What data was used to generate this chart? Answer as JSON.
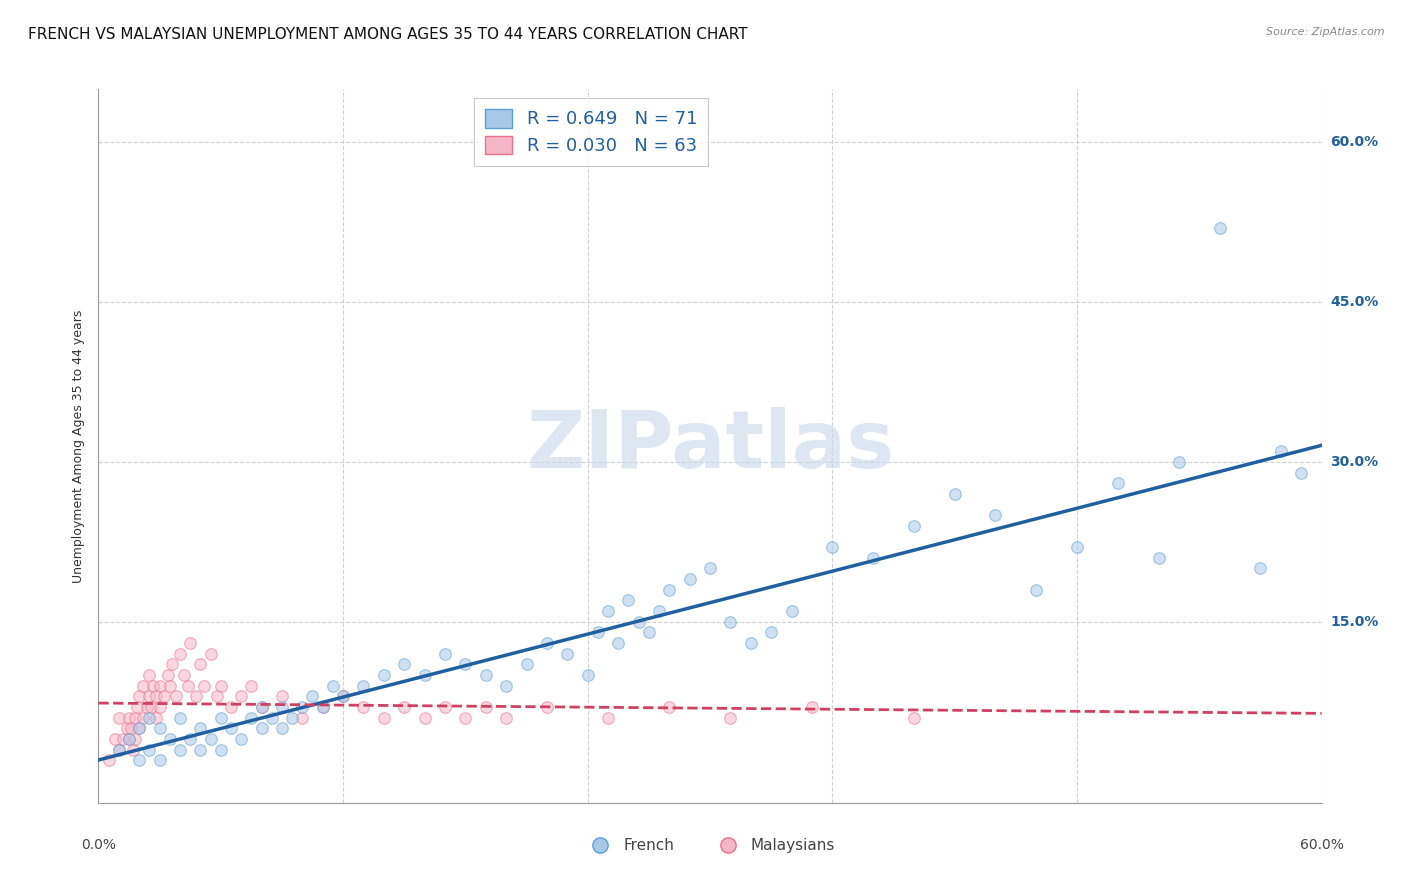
{
  "title": "FRENCH VS MALAYSIAN UNEMPLOYMENT AMONG AGES 35 TO 44 YEARS CORRELATION CHART",
  "source": "Source: ZipAtlas.com",
  "ylabel": "Unemployment Among Ages 35 to 44 years",
  "xlim": [
    0.0,
    0.6
  ],
  "ylim": [
    -0.02,
    0.65
  ],
  "ytick_labels": [
    "15.0%",
    "30.0%",
    "45.0%",
    "60.0%"
  ],
  "ytick_values": [
    0.15,
    0.3,
    0.45,
    0.6
  ],
  "xtick_values": [
    0.0,
    0.12,
    0.24,
    0.36,
    0.48,
    0.6
  ],
  "xtick_labels": [
    "",
    "",
    "",
    "",
    "",
    ""
  ],
  "watermark": "ZIPatlas",
  "french_color": "#a8c8e8",
  "french_edge_color": "#5a9fd4",
  "malaysian_color": "#f7b6c8",
  "malaysian_edge_color": "#e8708a",
  "french_R": 0.649,
  "french_N": 71,
  "malaysian_R": 0.03,
  "malaysian_N": 63,
  "trend_blue_color": "#2060a0",
  "trend_pink_color": "#d04060",
  "french_x": [
    0.01,
    0.015,
    0.02,
    0.02,
    0.025,
    0.025,
    0.03,
    0.03,
    0.035,
    0.04,
    0.04,
    0.045,
    0.05,
    0.05,
    0.055,
    0.06,
    0.06,
    0.065,
    0.07,
    0.075,
    0.08,
    0.08,
    0.085,
    0.09,
    0.09,
    0.095,
    0.1,
    0.105,
    0.11,
    0.115,
    0.12,
    0.13,
    0.14,
    0.15,
    0.16,
    0.17,
    0.18,
    0.19,
    0.2,
    0.21,
    0.22,
    0.23,
    0.24,
    0.245,
    0.25,
    0.255,
    0.26,
    0.265,
    0.27,
    0.275,
    0.28,
    0.29,
    0.3,
    0.31,
    0.32,
    0.33,
    0.34,
    0.36,
    0.38,
    0.4,
    0.42,
    0.44,
    0.46,
    0.48,
    0.5,
    0.52,
    0.53,
    0.55,
    0.57,
    0.58,
    0.59
  ],
  "french_y": [
    0.03,
    0.04,
    0.02,
    0.05,
    0.03,
    0.06,
    0.02,
    0.05,
    0.04,
    0.03,
    0.06,
    0.04,
    0.03,
    0.05,
    0.04,
    0.03,
    0.06,
    0.05,
    0.04,
    0.06,
    0.05,
    0.07,
    0.06,
    0.05,
    0.07,
    0.06,
    0.07,
    0.08,
    0.07,
    0.09,
    0.08,
    0.09,
    0.1,
    0.11,
    0.1,
    0.12,
    0.11,
    0.1,
    0.09,
    0.11,
    0.13,
    0.12,
    0.1,
    0.14,
    0.16,
    0.13,
    0.17,
    0.15,
    0.14,
    0.16,
    0.18,
    0.19,
    0.2,
    0.15,
    0.13,
    0.14,
    0.16,
    0.22,
    0.21,
    0.24,
    0.27,
    0.25,
    0.18,
    0.22,
    0.28,
    0.21,
    0.3,
    0.52,
    0.2,
    0.31,
    0.29
  ],
  "malaysian_x": [
    0.005,
    0.008,
    0.01,
    0.01,
    0.012,
    0.014,
    0.015,
    0.015,
    0.016,
    0.017,
    0.018,
    0.018,
    0.019,
    0.02,
    0.02,
    0.022,
    0.022,
    0.024,
    0.025,
    0.025,
    0.026,
    0.027,
    0.028,
    0.028,
    0.03,
    0.03,
    0.032,
    0.034,
    0.035,
    0.036,
    0.038,
    0.04,
    0.042,
    0.044,
    0.045,
    0.048,
    0.05,
    0.052,
    0.055,
    0.058,
    0.06,
    0.065,
    0.07,
    0.075,
    0.08,
    0.09,
    0.1,
    0.11,
    0.12,
    0.13,
    0.14,
    0.15,
    0.16,
    0.17,
    0.18,
    0.19,
    0.2,
    0.22,
    0.25,
    0.28,
    0.31,
    0.35,
    0.4
  ],
  "malaysian_y": [
    0.02,
    0.04,
    0.03,
    0.06,
    0.04,
    0.05,
    0.06,
    0.04,
    0.05,
    0.03,
    0.06,
    0.04,
    0.07,
    0.05,
    0.08,
    0.06,
    0.09,
    0.07,
    0.08,
    0.1,
    0.07,
    0.09,
    0.06,
    0.08,
    0.07,
    0.09,
    0.08,
    0.1,
    0.09,
    0.11,
    0.08,
    0.12,
    0.1,
    0.09,
    0.13,
    0.08,
    0.11,
    0.09,
    0.12,
    0.08,
    0.09,
    0.07,
    0.08,
    0.09,
    0.07,
    0.08,
    0.06,
    0.07,
    0.08,
    0.07,
    0.06,
    0.07,
    0.06,
    0.07,
    0.06,
    0.07,
    0.06,
    0.07,
    0.06,
    0.07,
    0.06,
    0.07,
    0.06
  ],
  "background_color": "#ffffff",
  "grid_color": "#cccccc",
  "title_fontsize": 11,
  "axis_label_fontsize": 9,
  "tick_fontsize": 10,
  "legend_fontsize": 13,
  "marker_size": 70,
  "marker_alpha": 0.55,
  "marker_linewidth": 0.8
}
